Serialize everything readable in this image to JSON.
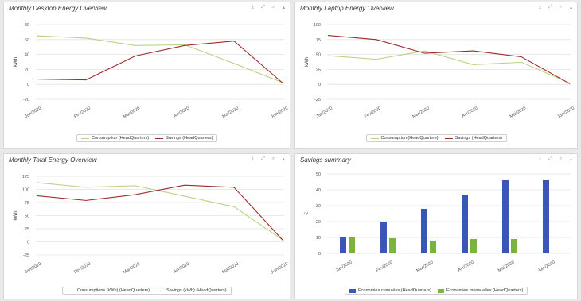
{
  "toolbar": {
    "export_icon": "download-icon",
    "expand_icon": "expand-icon",
    "zoom_icon": "zoom-icon",
    "collapse_icon": "collapse-icon"
  },
  "chart_data": [
    {
      "id": "desktop",
      "type": "line",
      "title": "Monthly Desktop Energy Overview",
      "ylabel": "kWh",
      "categories": [
        "Jan/2020",
        "Fev/2020",
        "Mar/2020",
        "Avr/2020",
        "Mai/2020",
        "Juin/2020"
      ],
      "ylim": [
        -20,
        80
      ],
      "yticks": [
        -20,
        0,
        20,
        40,
        60,
        80
      ],
      "grid": true,
      "legend_position": "bottom-center",
      "series": [
        {
          "name": "Consumption (HeadQuarters)",
          "color": "#b7d385",
          "values": [
            65,
            62,
            52,
            53,
            28,
            2
          ]
        },
        {
          "name": "Savings (HeadQuarters)",
          "color": "#9e2a2b",
          "values": [
            7,
            6,
            38,
            52,
            58,
            1
          ]
        }
      ]
    },
    {
      "id": "laptop",
      "type": "line",
      "title": "Monthly Laptop Energy Overview",
      "ylabel": "kWh",
      "categories": [
        "Jan/2020",
        "Fev/2020",
        "Mar/2020",
        "Avr/2020",
        "Mai/2020",
        "Juin/2020"
      ],
      "ylim": [
        -25,
        100
      ],
      "yticks": [
        -25,
        0,
        25,
        50,
        75,
        100
      ],
      "grid": true,
      "legend_position": "bottom-center",
      "series": [
        {
          "name": "Consumption (HeadQuarters)",
          "color": "#b7d385",
          "values": [
            48,
            42,
            56,
            33,
            37,
            2
          ]
        },
        {
          "name": "Savings (HeadQuarters)",
          "color": "#9e2a2b",
          "values": [
            82,
            75,
            52,
            56,
            46,
            1
          ]
        }
      ]
    },
    {
      "id": "total",
      "type": "line",
      "title": "Monthly Total Energy Overview",
      "ylabel": "kWh",
      "categories": [
        "Jan/2020",
        "Fev/2020",
        "Mar/2020",
        "Avr/2020",
        "Mai/2020",
        "Juin/2020"
      ],
      "ylim": [
        -25,
        125
      ],
      "yticks": [
        -25,
        0,
        25,
        50,
        75,
        100,
        125
      ],
      "grid": true,
      "legend_position": "bottom-center",
      "series": [
        {
          "name": "Consumptions (kWh) (HeadQuarters)",
          "color": "#b7d385",
          "values": [
            113,
            104,
            107,
            87,
            67,
            3
          ]
        },
        {
          "name": "Savings (kWh) (HeadQuarters)",
          "color": "#9e2a2b",
          "values": [
            88,
            79,
            90,
            108,
            104,
            2
          ]
        }
      ]
    },
    {
      "id": "savings",
      "type": "bar",
      "title": "Savings summary",
      "ylabel": "€",
      "categories": [
        "Jan/2020",
        "Fev/2020",
        "Mar/2020",
        "Avr/2020",
        "Mai/2020",
        "Juin/2020"
      ],
      "ylim": [
        0,
        50
      ],
      "yticks": [
        0,
        10,
        20,
        30,
        40,
        50
      ],
      "grid": true,
      "legend_position": "bottom-center",
      "series": [
        {
          "name": "Economies cumulées (HeadQuarters)",
          "color": "#3a56b6",
          "values": [
            10,
            20,
            28,
            37,
            46,
            46
          ]
        },
        {
          "name": "Economies mensuelles (HeadQuarters)",
          "color": "#7bb33d",
          "values": [
            10,
            9.5,
            8,
            9,
            9,
            0.3
          ]
        }
      ]
    }
  ]
}
